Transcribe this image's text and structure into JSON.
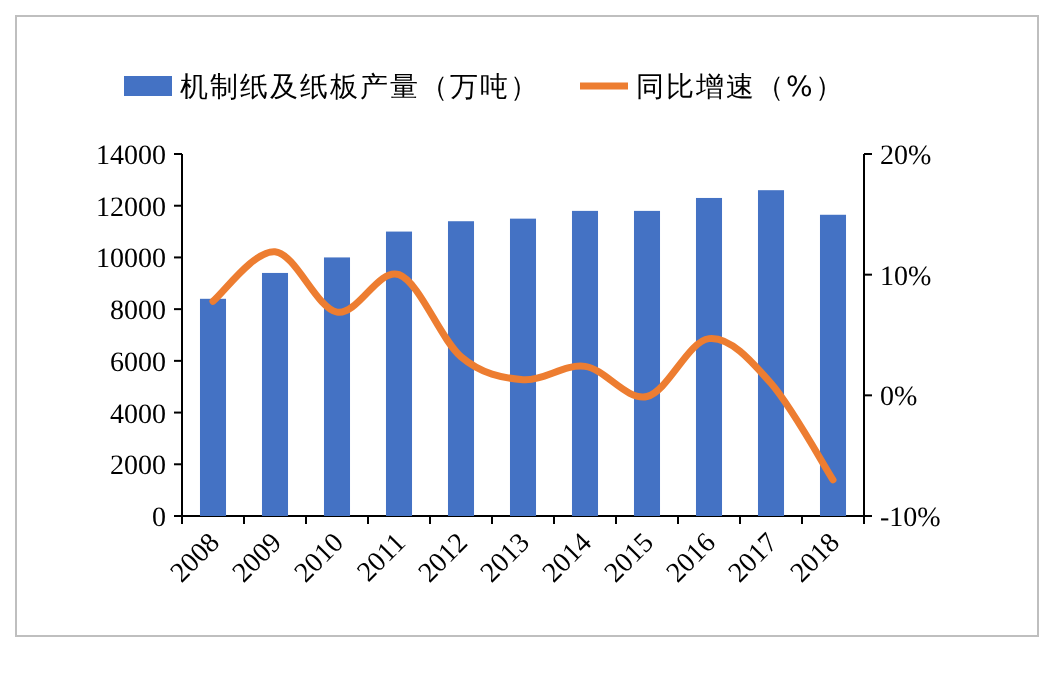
{
  "chart_data": {
    "type": "bar",
    "categories": [
      "2008",
      "2009",
      "2010",
      "2011",
      "2012",
      "2013",
      "2014",
      "2015",
      "2016",
      "2017",
      "2018"
    ],
    "series": [
      {
        "name": "机制纸及纸板产量（万吨）",
        "color": "#4472c4",
        "values": [
          8400,
          9400,
          10000,
          11000,
          11400,
          11500,
          11800,
          11800,
          12300,
          12600,
          11650
        ]
      },
      {
        "name": "同比增速（%）",
        "type": "line",
        "axis": "y2",
        "color": "#ed7d31",
        "values": [
          7.8,
          11.9,
          6.9,
          10.0,
          3.2,
          1.3,
          2.4,
          -0.1,
          4.7,
          1.0,
          -7.0
        ]
      }
    ],
    "ylim": [
      0,
      14000
    ],
    "yticks": [
      0,
      2000,
      4000,
      6000,
      8000,
      10000,
      12000,
      14000
    ],
    "y2lim": [
      -10,
      20
    ],
    "y2ticks": [
      {
        "value": -10,
        "label": "-10%"
      },
      {
        "value": 0,
        "label": "0%"
      },
      {
        "value": 10,
        "label": "10%"
      },
      {
        "value": 20,
        "label": "20%"
      }
    ],
    "legend": "top",
    "grid": false
  }
}
